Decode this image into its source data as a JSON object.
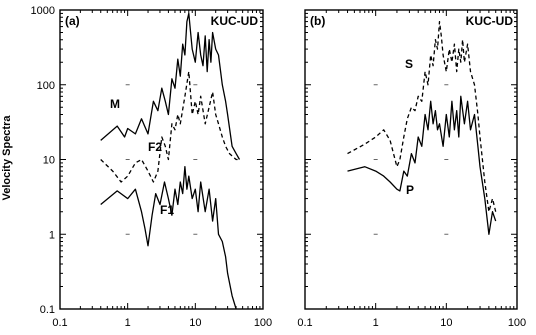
{
  "chart_data": [
    {
      "type": "line",
      "panel_label": "(a)",
      "station": "KUC-UD",
      "ylabel": "Velocity Spectra",
      "xscale": "log",
      "yscale": "log",
      "xlim": [
        0.1,
        100
      ],
      "ylim": [
        0.1,
        1000
      ],
      "xticks": [
        "0.1",
        "1",
        "10",
        "100"
      ],
      "yticks": [
        "0.1",
        "1",
        "10",
        "100",
        "1000"
      ],
      "grid": "dotted points at decade intersections",
      "series": [
        {
          "name": "M",
          "style": "solid",
          "points": [
            [
              0.4,
              18
            ],
            [
              0.7,
              28
            ],
            [
              0.9,
              20
            ],
            [
              1.0,
              26
            ],
            [
              1.3,
              22
            ],
            [
              1.6,
              35
            ],
            [
              2.0,
              22
            ],
            [
              2.4,
              60
            ],
            [
              2.8,
              45
            ],
            [
              3.2,
              90
            ],
            [
              3.6,
              60
            ],
            [
              4.0,
              40
            ],
            [
              4.5,
              120
            ],
            [
              5.0,
              90
            ],
            [
              5.5,
              220
            ],
            [
              6.0,
              130
            ],
            [
              6.5,
              350
            ],
            [
              7.0,
              250
            ],
            [
              7.5,
              700
            ],
            [
              8.0,
              900
            ],
            [
              8.5,
              500
            ],
            [
              9.0,
              300
            ],
            [
              10.0,
              200
            ],
            [
              11.0,
              500
            ],
            [
              12.0,
              250
            ],
            [
              13.0,
              180
            ],
            [
              14.0,
              450
            ],
            [
              15.0,
              150
            ],
            [
              16.0,
              400
            ],
            [
              17.0,
              200
            ],
            [
              18.0,
              500
            ],
            [
              20.0,
              300
            ],
            [
              22.0,
              250
            ],
            [
              25.0,
              100
            ],
            [
              28.0,
              60
            ],
            [
              30.0,
              40
            ],
            [
              35.0,
              15
            ],
            [
              40.0,
              12
            ],
            [
              45.0,
              10
            ]
          ]
        },
        {
          "name": "F2",
          "style": "dashed",
          "points": [
            [
              0.4,
              10
            ],
            [
              0.6,
              7
            ],
            [
              0.8,
              5
            ],
            [
              1.0,
              6
            ],
            [
              1.3,
              9
            ],
            [
              1.6,
              10
            ],
            [
              2.0,
              7
            ],
            [
              2.4,
              5
            ],
            [
              2.8,
              7
            ],
            [
              3.2,
              20
            ],
            [
              3.6,
              15
            ],
            [
              4.0,
              10
            ],
            [
              4.5,
              30
            ],
            [
              5.0,
              25
            ],
            [
              5.5,
              40
            ],
            [
              6.0,
              30
            ],
            [
              7.0,
              70
            ],
            [
              8.0,
              150
            ],
            [
              9.0,
              40
            ],
            [
              10.0,
              60
            ],
            [
              11.0,
              40
            ],
            [
              12.0,
              70
            ],
            [
              14.0,
              30
            ],
            [
              16.0,
              50
            ],
            [
              18.0,
              80
            ],
            [
              20.0,
              40
            ],
            [
              22.0,
              30
            ],
            [
              25.0,
              20
            ],
            [
              28.0,
              15
            ],
            [
              32.0,
              12
            ],
            [
              40.0,
              10
            ],
            [
              45.0,
              10
            ]
          ]
        },
        {
          "name": "F1",
          "style": "solid",
          "points": [
            [
              0.4,
              2.5
            ],
            [
              0.7,
              3.8
            ],
            [
              1.0,
              3.0
            ],
            [
              1.3,
              4.0
            ],
            [
              1.6,
              2.0
            ],
            [
              1.8,
              1.2
            ],
            [
              2.0,
              0.7
            ],
            [
              2.3,
              1.8
            ],
            [
              2.6,
              3.5
            ],
            [
              3.0,
              2.5
            ],
            [
              3.5,
              5.0
            ],
            [
              4.0,
              3.0
            ],
            [
              4.5,
              1.8
            ],
            [
              5.0,
              4.0
            ],
            [
              5.5,
              2.5
            ],
            [
              6.0,
              5.0
            ],
            [
              6.5,
              3.5
            ],
            [
              7.0,
              8.0
            ],
            [
              7.5,
              4.0
            ],
            [
              8.0,
              6.0
            ],
            [
              9.0,
              3.0
            ],
            [
              10.0,
              4.0
            ],
            [
              11.0,
              2.0
            ],
            [
              12.0,
              5.0
            ],
            [
              14.0,
              2.0
            ],
            [
              16.0,
              4.0
            ],
            [
              18.0,
              1.5
            ],
            [
              20.0,
              3.0
            ],
            [
              22.0,
              1.0
            ],
            [
              25.0,
              0.8
            ],
            [
              28.0,
              0.5
            ],
            [
              30.0,
              0.3
            ],
            [
              35.0,
              0.15
            ],
            [
              40.0,
              0.1
            ]
          ]
        }
      ]
    },
    {
      "type": "line",
      "panel_label": "(b)",
      "station": "KUC-UD",
      "xscale": "log",
      "yscale": "log",
      "xlim": [
        0.1,
        100
      ],
      "ylim": [
        0.1,
        1000
      ],
      "xticks": [
        "0.1",
        "1",
        "10",
        "100"
      ],
      "grid": "dotted points at decade intersections",
      "series": [
        {
          "name": "S",
          "style": "dashed",
          "points": [
            [
              0.4,
              12
            ],
            [
              0.7,
              16
            ],
            [
              1.0,
              20
            ],
            [
              1.3,
              25
            ],
            [
              1.6,
              18
            ],
            [
              2.0,
              8
            ],
            [
              2.2,
              10
            ],
            [
              2.5,
              20
            ],
            [
              2.8,
              35
            ],
            [
              3.2,
              50
            ],
            [
              3.6,
              45
            ],
            [
              4.0,
              70
            ],
            [
              4.5,
              60
            ],
            [
              5.0,
              150
            ],
            [
              5.5,
              100
            ],
            [
              6.0,
              250
            ],
            [
              6.5,
              180
            ],
            [
              7.0,
              400
            ],
            [
              7.5,
              300
            ],
            [
              8.0,
              700
            ],
            [
              8.5,
              450
            ],
            [
              9.0,
              250
            ],
            [
              10.0,
              150
            ],
            [
              11.0,
              300
            ],
            [
              12.0,
              200
            ],
            [
              13.0,
              350
            ],
            [
              14.0,
              150
            ],
            [
              15.0,
              300
            ],
            [
              16.0,
              200
            ],
            [
              17.0,
              400
            ],
            [
              18.0,
              200
            ],
            [
              20.0,
              350
            ],
            [
              22.0,
              150
            ],
            [
              25.0,
              100
            ],
            [
              28.0,
              40
            ],
            [
              30.0,
              20
            ],
            [
              35.0,
              5
            ],
            [
              40.0,
              2
            ],
            [
              45.0,
              3
            ],
            [
              50.0,
              2
            ]
          ]
        },
        {
          "name": "P",
          "style": "solid",
          "points": [
            [
              0.4,
              7
            ],
            [
              0.7,
              8
            ],
            [
              1.0,
              7
            ],
            [
              1.3,
              6
            ],
            [
              1.6,
              5
            ],
            [
              2.0,
              4
            ],
            [
              2.2,
              3.8
            ],
            [
              2.5,
              7
            ],
            [
              2.8,
              6
            ],
            [
              3.2,
              12
            ],
            [
              3.6,
              9
            ],
            [
              4.0,
              20
            ],
            [
              4.5,
              15
            ],
            [
              5.0,
              40
            ],
            [
              5.5,
              25
            ],
            [
              6.0,
              60
            ],
            [
              6.5,
              30
            ],
            [
              7.0,
              45
            ],
            [
              7.5,
              25
            ],
            [
              8.0,
              30
            ],
            [
              9.0,
              15
            ],
            [
              10.0,
              40
            ],
            [
              11.0,
              20
            ],
            [
              12.0,
              60
            ],
            [
              13.0,
              25
            ],
            [
              14.0,
              45
            ],
            [
              15.0,
              20
            ],
            [
              16.0,
              70
            ],
            [
              18.0,
              30
            ],
            [
              20.0,
              60
            ],
            [
              22.0,
              25
            ],
            [
              25.0,
              40
            ],
            [
              28.0,
              15
            ],
            [
              30.0,
              8
            ],
            [
              35.0,
              3
            ],
            [
              40.0,
              1.0
            ],
            [
              45.0,
              2
            ],
            [
              50.0,
              1.5
            ]
          ]
        }
      ]
    }
  ]
}
